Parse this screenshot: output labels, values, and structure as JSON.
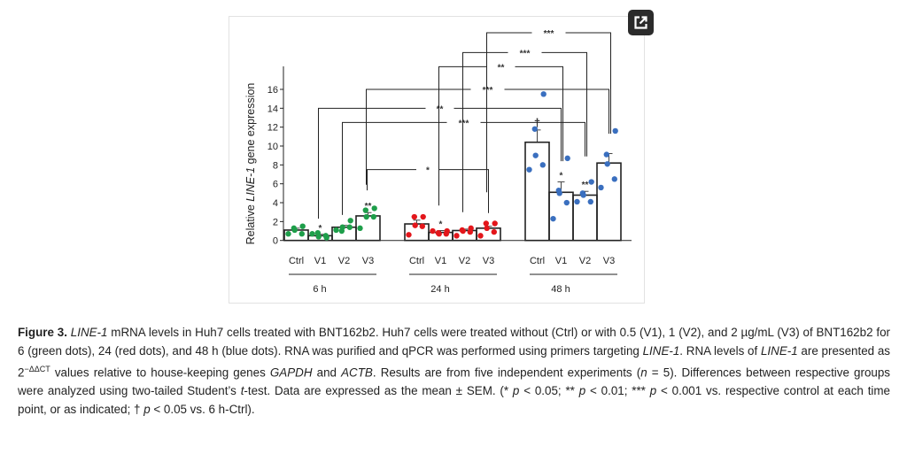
{
  "figure": {
    "expand_icon": "external-link-icon",
    "caption": [
      {
        "t": "Figure 3.",
        "b": true
      },
      {
        "t": " "
      },
      {
        "t": "LINE-1",
        "i": true
      },
      {
        "t": " mRNA levels in Huh7 cells treated with BNT162b2. Huh7 cells were treated without (Ctrl) or with 0.5 (V1), 1 (V2), and 2 µg/mL (V3) of BNT162b2 for 6 (green dots), 24 (red dots), and 48 h (blue dots). RNA was purified and qPCR was performed using primers targeting "
      },
      {
        "t": "LINE-1",
        "i": true
      },
      {
        "t": ". RNA levels of "
      },
      {
        "t": "LINE-1",
        "i": true
      },
      {
        "t": " are presented as 2"
      },
      {
        "t": "−ΔΔCT",
        "sup": true
      },
      {
        "t": " values relative to house-keeping genes "
      },
      {
        "t": "GAPDH",
        "i": true
      },
      {
        "t": " and "
      },
      {
        "t": "ACTB",
        "i": true
      },
      {
        "t": ". Results are from five independent experiments ("
      },
      {
        "t": "n",
        "i": true
      },
      {
        "t": " = 5). Differences between respective groups were analyzed using two-tailed Student’s "
      },
      {
        "t": "t",
        "i": true
      },
      {
        "t": "-test. Data are expressed as the mean ± SEM. (* "
      },
      {
        "t": "p",
        "i": true
      },
      {
        "t": " < 0.05; ** "
      },
      {
        "t": "p",
        "i": true
      },
      {
        "t": " < 0.01; *** "
      },
      {
        "t": "p",
        "i": true
      },
      {
        "t": " < 0.001 vs. respective control at each time point, or as indicated; † "
      },
      {
        "t": "p",
        "i": true
      },
      {
        "t": " < 0.05 vs. 6 h-Ctrl)."
      }
    ]
  },
  "chart_data": {
    "type": "bar",
    "ylabel_parts": [
      "Relative ",
      "LINE-1",
      " gene expression"
    ],
    "ylim": [
      0,
      16
    ],
    "yticks": [
      0,
      2,
      4,
      6,
      8,
      10,
      12,
      14,
      16
    ],
    "grid": false,
    "groups": [
      {
        "label": "6 h",
        "color": "#1e9e4a",
        "bars": [
          {
            "cat": "Ctrl",
            "mean": 1.1,
            "sem": 0.2,
            "points": [
              1.5,
              1.3,
              1.1,
              0.7,
              0.7
            ],
            "mark": ""
          },
          {
            "cat": "V1",
            "mean": 0.5,
            "sem": 0.15,
            "points": [
              0.3,
              0.8,
              0.4,
              0.5,
              0.7
            ],
            "mark": "*"
          },
          {
            "cat": "V2",
            "mean": 1.4,
            "sem": 0.2,
            "points": [
              2.1,
              1.0,
              1.4,
              1.4,
              1.1
            ],
            "mark": ""
          },
          {
            "cat": "V3",
            "mean": 2.6,
            "sem": 0.35,
            "points": [
              3.4,
              3.2,
              2.5,
              2.5,
              1.3
            ],
            "mark": "**"
          }
        ]
      },
      {
        "label": "24 h",
        "color": "#e3161b",
        "bars": [
          {
            "cat": "Ctrl",
            "mean": 1.75,
            "sem": 0.4,
            "points": [
              2.5,
              2.5,
              1.6,
              1.5,
              0.6
            ],
            "mark": ""
          },
          {
            "cat": "V1",
            "mean": 0.85,
            "sem": 0.2,
            "points": [
              1.0,
              0.8,
              0.7,
              0.7,
              1.0
            ],
            "mark": "*"
          },
          {
            "cat": "V2",
            "mean": 1.05,
            "sem": 0.15,
            "points": [
              1.3,
              1.1,
              1.0,
              0.9,
              0.5
            ],
            "mark": ""
          },
          {
            "cat": "V3",
            "mean": 1.3,
            "sem": 0.2,
            "points": [
              1.8,
              1.8,
              1.3,
              0.9,
              0.5
            ],
            "mark": ""
          }
        ]
      },
      {
        "label": "48 h",
        "color": "#3a6fbf",
        "bars": [
          {
            "cat": "Ctrl",
            "mean": 10.4,
            "sem": 1.3,
            "points": [
              15.5,
              11.8,
              9.0,
              8.0,
              7.5
            ],
            "mark": "†"
          },
          {
            "cat": "V1",
            "mean": 5.1,
            "sem": 1.1,
            "points": [
              8.7,
              5.3,
              5.0,
              4.0,
              2.3
            ],
            "mark": "*"
          },
          {
            "cat": "V2",
            "mean": 4.8,
            "sem": 0.4,
            "points": [
              6.2,
              5.0,
              4.8,
              4.1,
              4.1
            ],
            "mark": "**"
          },
          {
            "cat": "V3",
            "mean": 8.2,
            "sem": 1.0,
            "points": [
              11.6,
              9.1,
              8.1,
              6.5,
              5.6
            ],
            "mark": ""
          }
        ]
      }
    ],
    "comparisons": [
      {
        "from": "6 h V3",
        "to": "24 h V3",
        "label": "*"
      },
      {
        "from": "6 h V2",
        "to": "48 h V2",
        "label": "***"
      },
      {
        "from": "6 h V1",
        "to": "48 h V1",
        "label": "**"
      },
      {
        "from": "6 h V3",
        "to": "48 h V3",
        "label": "***"
      },
      {
        "from": "24 h V1",
        "to": "48 h V1",
        "label": "**"
      },
      {
        "from": "24 h V2",
        "to": "48 h V2",
        "label": "***"
      },
      {
        "from": "24 h V3",
        "to": "48 h V3",
        "label": "***"
      }
    ]
  }
}
